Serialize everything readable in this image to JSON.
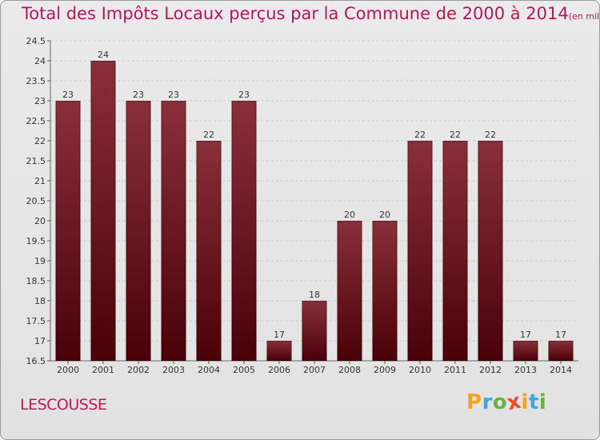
{
  "header": {
    "title": "Total des Impôts Locaux perçus par la Commune de 2000 à 2014",
    "unit": "(en milliers d'€)"
  },
  "commune": "LESCOUSSE",
  "brand": {
    "letters": [
      "P",
      "r",
      "o",
      "x",
      "i",
      "t",
      "i"
    ],
    "colors": [
      "#f4a21c",
      "#3fa6de",
      "#6ab23f",
      "#e94e29",
      "#f4a21c",
      "#3fa6de",
      "#6ab23f"
    ]
  },
  "colors": {
    "bar_top": "#8a2f3a",
    "bar_bottom": "#4a0008",
    "grid": "#c8c8c8",
    "title": "#b0185a"
  },
  "chart_data": {
    "type": "bar",
    "title": "Total des Impôts Locaux perçus par la Commune de 2000 à 2014",
    "xlabel": "",
    "ylabel": "",
    "categories": [
      "2000",
      "2001",
      "2002",
      "2003",
      "2004",
      "2005",
      "2006",
      "2007",
      "2008",
      "2009",
      "2010",
      "2011",
      "2012",
      "2013",
      "2014"
    ],
    "values": [
      23,
      24,
      23,
      23,
      22,
      23,
      17,
      18,
      20,
      20,
      22,
      22,
      22,
      17,
      17
    ],
    "ylim": [
      16.5,
      24.5
    ],
    "yticks": [
      "16.5",
      "17",
      "17.5",
      "18",
      "18.5",
      "19",
      "19.5",
      "20",
      "20.5",
      "21",
      "21.5",
      "22",
      "22.5",
      "23",
      "23.5",
      "24",
      "24.5"
    ],
    "grid": true
  }
}
